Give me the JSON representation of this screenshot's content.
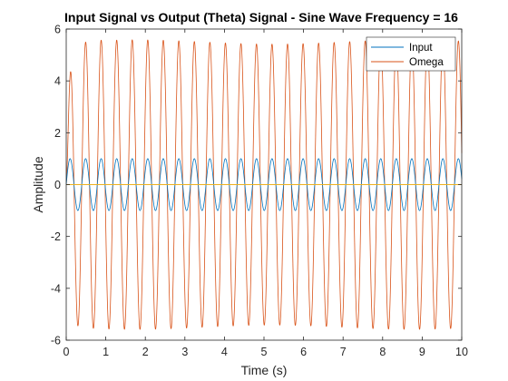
{
  "chart_data": {
    "type": "line",
    "title": "Input Signal vs Output (Theta) Signal - Sine Wave Frequency = 16",
    "xlabel": "Time (s)",
    "ylabel": "Amplitude",
    "xlim": [
      0,
      10
    ],
    "ylim": [
      -6,
      6
    ],
    "xticks": [
      "0",
      "1",
      "2",
      "3",
      "4",
      "5",
      "6",
      "7",
      "8",
      "9",
      "10"
    ],
    "yticks": [
      "-6",
      "-4",
      "-2",
      "0",
      "2",
      "4",
      "6"
    ],
    "grid": false,
    "legend_position": "top-right",
    "frequency": 16,
    "series": [
      {
        "name": "Input",
        "color": "#0072BD",
        "amplitude": 1.0,
        "function": "sin(16 t)"
      },
      {
        "name": "Omega",
        "color": "#D95319",
        "amplitude": 5.5,
        "function": "sin(16 t), transient start"
      },
      {
        "name": "",
        "color": "#EDB120",
        "amplitude": 0.0,
        "function": "0"
      }
    ]
  }
}
